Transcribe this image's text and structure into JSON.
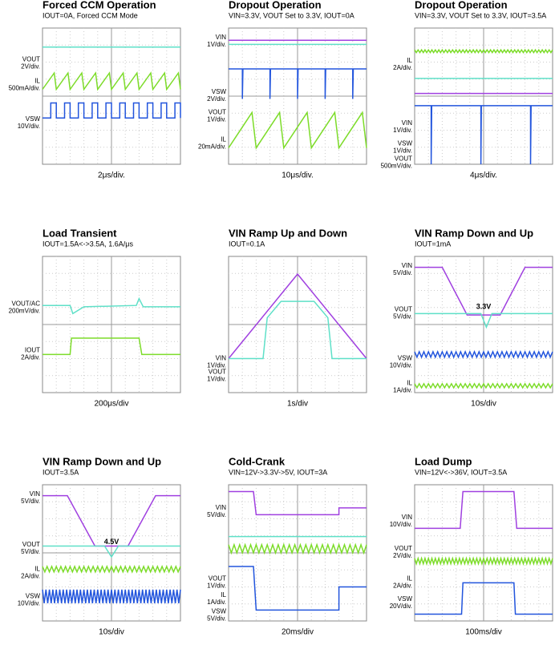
{
  "panels": [
    {
      "title": "Forced CCM Operation",
      "subtitle": "IOUT=0A, Forced CCM Mode",
      "labels": [
        [
          "VOUT",
          "2V/div."
        ],
        [
          "IL",
          "500mA/div."
        ],
        [
          "VSW",
          "10V/div."
        ]
      ],
      "timebase": "2μs/div."
    },
    {
      "title": "Dropout Operation",
      "subtitle": "VIN=3.3V, VOUT Set to 3.3V, IOUT=0A",
      "labels": [
        [
          "VIN",
          "1V/div."
        ],
        [
          "VSW",
          "2V/div."
        ],
        [
          "VOUT",
          "1V/div."
        ],
        [
          "IL",
          "20mA/div."
        ]
      ],
      "timebase": "10μs/div."
    },
    {
      "title": "Dropout Operation",
      "subtitle": "VIN=3.3V, VOUT Set to 3.3V, IOUT=3.5A",
      "labels": [
        [
          "IL",
          "2A/div."
        ],
        [
          "VIN",
          "1V/div."
        ],
        [
          "VSW",
          "1V/div."
        ],
        [
          "VOUT",
          "500mV/div."
        ]
      ],
      "timebase": "4μs/div."
    },
    {
      "title": "Load Transient",
      "subtitle": "IOUT=1.5A<->3.5A, 1.6A/μs",
      "labels": [
        [
          "VOUT/AC",
          "200mV/div."
        ],
        [
          "IOUT",
          "2A/div."
        ]
      ],
      "timebase": "200μs/div"
    },
    {
      "title": "VIN Ramp Up and Down",
      "subtitle": "IOUT=0.1A",
      "labels": [
        [
          "VIN",
          "1V/div."
        ],
        [
          "VOUT",
          "1V/div."
        ]
      ],
      "timebase": "1s/div"
    },
    {
      "title": "VIN Ramp Down and Up",
      "subtitle": "IOUT=1mA",
      "labels": [
        [
          "VIN",
          "5V/div."
        ],
        [
          "VOUT",
          "5V/div."
        ],
        [
          "VSW",
          "10V/div."
        ],
        [
          "IL",
          "1A/div."
        ]
      ],
      "annotation": "3.3V",
      "timebase": "10s/div"
    },
    {
      "title": "VIN Ramp Down and Up",
      "subtitle": "IOUT=3.5A",
      "labels": [
        [
          "VIN",
          "5V/div."
        ],
        [
          "VOUT",
          "5V/div."
        ],
        [
          "IL",
          "2A/div."
        ],
        [
          "VSW",
          "10V/div."
        ]
      ],
      "annotation": "4.5V",
      "timebase": "10s/div"
    },
    {
      "title": "Cold-Crank",
      "subtitle": "VIN=12V->3.3V->5V, IOUT=3A",
      "labels": [
        [
          "VIN",
          "5V/div."
        ],
        [
          "VOUT",
          "1V/div."
        ],
        [
          "IL",
          "1A/div."
        ],
        [
          "VSW",
          "5V/div."
        ]
      ],
      "timebase": "20ms/div"
    },
    {
      "title": "Load Dump",
      "subtitle": "VIN=12V<->36V, IOUT=3.5A",
      "labels": [
        [
          "VIN",
          "10V/div."
        ],
        [
          "VOUT",
          "2V/div."
        ],
        [
          "IL",
          "2A/div."
        ],
        [
          "VSW",
          "20V/div."
        ]
      ],
      "timebase": "100ms/div"
    }
  ]
}
